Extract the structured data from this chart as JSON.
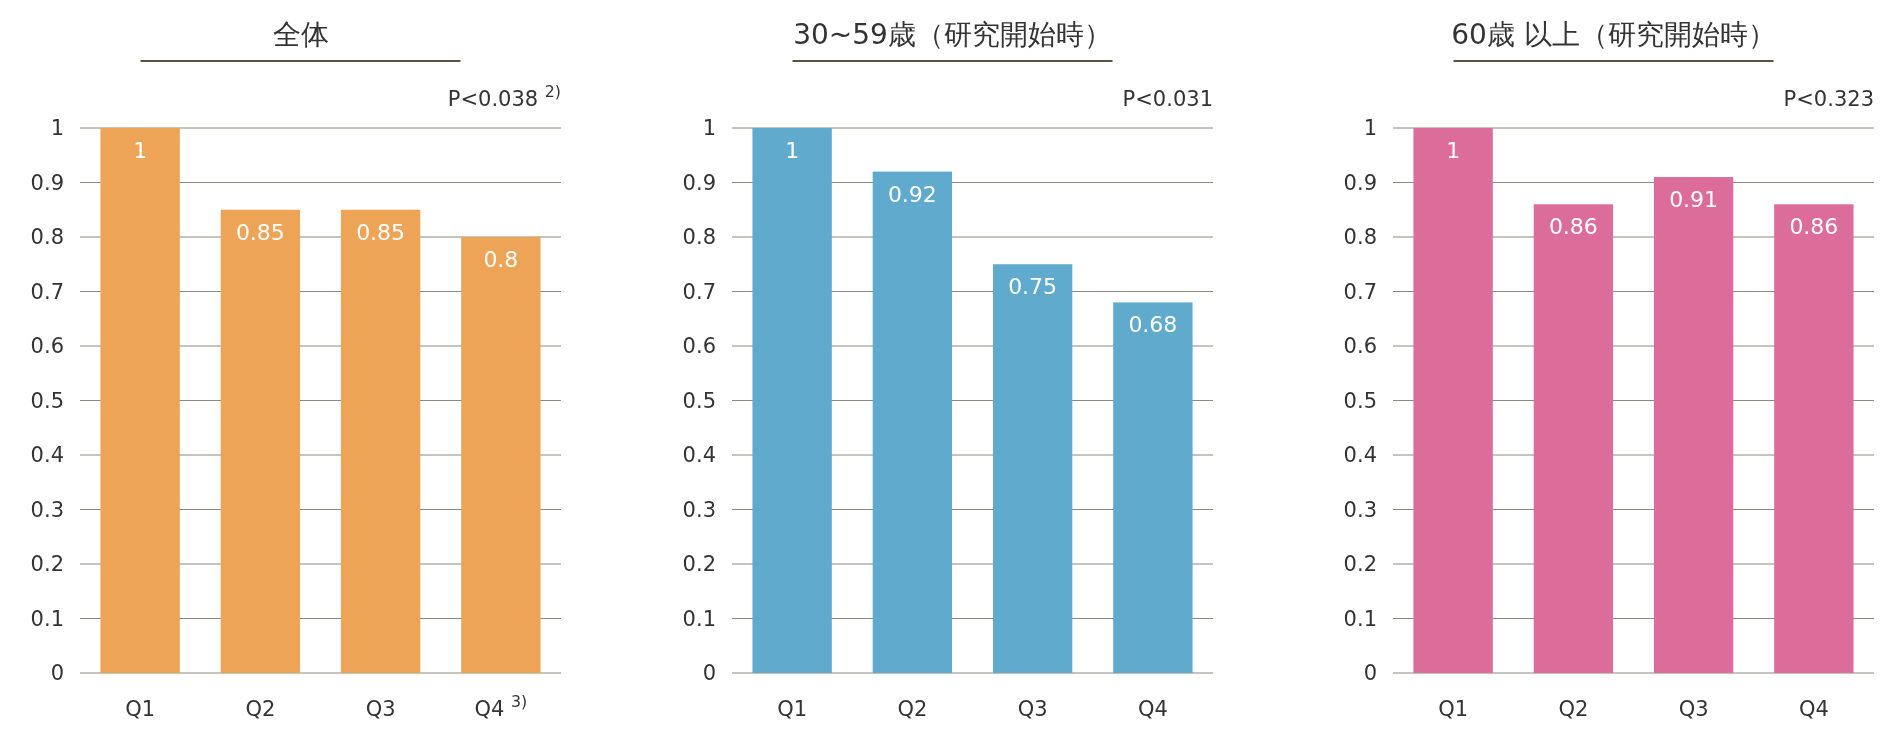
{
  "chart_data": [
    {
      "type": "bar",
      "title": "全体",
      "categories": [
        "Q1",
        "Q2",
        "Q3",
        "Q4 $^{3)}$"
      ],
      "values": [
        1,
        0.85,
        0.85,
        0.8
      ],
      "color": "#eda457",
      "ylim": [
        0,
        1
      ],
      "yticks": [
        0,
        0.1,
        0.2,
        0.3,
        0.4,
        0.5,
        0.6,
        0.7,
        0.8,
        0.9,
        1
      ],
      "grid": "y",
      "data_labels": true,
      "annotations": [
        "P<0.038 $^{2)}$"
      ]
    },
    {
      "type": "bar",
      "title": "30~59歳（研究開始時）",
      "categories": [
        "Q1",
        "Q2",
        "Q3",
        "Q4"
      ],
      "values": [
        1,
        0.92,
        0.75,
        0.68
      ],
      "color": "#5faacd",
      "ylim": [
        0,
        1
      ],
      "yticks": [
        0,
        0.1,
        0.2,
        0.3,
        0.4,
        0.5,
        0.6,
        0.7,
        0.8,
        0.9,
        1
      ],
      "grid": "y",
      "data_labels": true,
      "annotations": [
        "P<0.031"
      ]
    },
    {
      "type": "bar",
      "title": "60歳 以上（研究開始時）",
      "categories": [
        "Q1",
        "Q2",
        "Q3",
        "Q4"
      ],
      "values": [
        1,
        0.86,
        0.91,
        0.86
      ],
      "color": "#dc6d9b",
      "ylim": [
        0,
        1
      ],
      "yticks": [
        0,
        0.1,
        0.2,
        0.3,
        0.4,
        0.5,
        0.6,
        0.7,
        0.8,
        0.9,
        1
      ],
      "grid": "y",
      "data_labels": true,
      "annotations": [
        "P<0.323"
      ]
    }
  ]
}
